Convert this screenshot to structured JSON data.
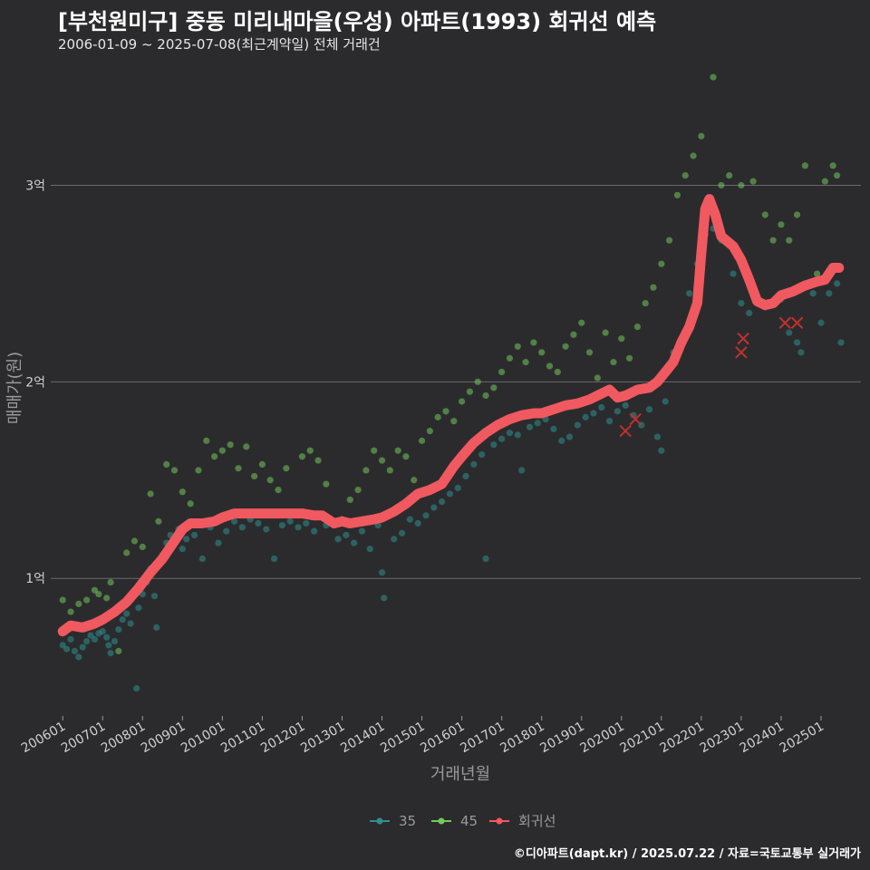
{
  "title": "[부천원미구] 중동 미리내마을(우성) 아파트(1993) 회귀선 예측",
  "subtitle": "2006-01-09 ~ 2025-07-08(최근계약일) 전체 거래건",
  "caption": "©디아파트(dapt.kr) / 2025.07.22 / 자료=국토교통부 실거래가",
  "colors": {
    "background": "#2b2b2d",
    "grid": "#6a6a6a",
    "series_35": "#2f8f8f",
    "series_45": "#72c95c",
    "regression": "#f0595f",
    "marker_x": "#c0312f"
  },
  "chart_data": {
    "type": "scatter",
    "xlabel": "거래년월",
    "ylabel": "매매가(원)",
    "x_ticks": [
      "200601",
      "200701",
      "200801",
      "200901",
      "201001",
      "201101",
      "201201",
      "201301",
      "201401",
      "201501",
      "201601",
      "201701",
      "201801",
      "201901",
      "202001",
      "202101",
      "202201",
      "202301",
      "202401",
      "202501"
    ],
    "y_ticks": [
      {
        "value": 1,
        "label": "1억"
      },
      {
        "value": 2,
        "label": "2억"
      },
      {
        "value": 3,
        "label": "3억"
      }
    ],
    "xlim": [
      2005.7,
      2026.0
    ],
    "ylim": [
      0.3,
      3.62
    ],
    "unit": "억",
    "legend": [
      "35",
      "45",
      "회귀선"
    ],
    "legend_position": "bottom",
    "regression_line": [
      [
        2006.0,
        0.73
      ],
      [
        2006.2,
        0.76
      ],
      [
        2006.5,
        0.75
      ],
      [
        2006.8,
        0.77
      ],
      [
        2007.0,
        0.79
      ],
      [
        2007.3,
        0.83
      ],
      [
        2007.6,
        0.88
      ],
      [
        2007.9,
        0.95
      ],
      [
        2008.2,
        1.03
      ],
      [
        2008.5,
        1.1
      ],
      [
        2008.8,
        1.19
      ],
      [
        2009.0,
        1.25
      ],
      [
        2009.2,
        1.28
      ],
      [
        2009.5,
        1.28
      ],
      [
        2009.8,
        1.29
      ],
      [
        2010.0,
        1.31
      ],
      [
        2010.3,
        1.33
      ],
      [
        2010.6,
        1.33
      ],
      [
        2010.9,
        1.33
      ],
      [
        2011.2,
        1.33
      ],
      [
        2011.5,
        1.33
      ],
      [
        2011.8,
        1.33
      ],
      [
        2012.0,
        1.33
      ],
      [
        2012.3,
        1.32
      ],
      [
        2012.5,
        1.32
      ],
      [
        2012.8,
        1.28
      ],
      [
        2013.0,
        1.29
      ],
      [
        2013.2,
        1.28
      ],
      [
        2013.5,
        1.29
      ],
      [
        2013.8,
        1.3
      ],
      [
        2014.0,
        1.31
      ],
      [
        2014.3,
        1.34
      ],
      [
        2014.6,
        1.38
      ],
      [
        2014.9,
        1.43
      ],
      [
        2015.2,
        1.45
      ],
      [
        2015.5,
        1.48
      ],
      [
        2015.8,
        1.57
      ],
      [
        2016.0,
        1.62
      ],
      [
        2016.3,
        1.69
      ],
      [
        2016.6,
        1.74
      ],
      [
        2016.9,
        1.78
      ],
      [
        2017.2,
        1.81
      ],
      [
        2017.5,
        1.83
      ],
      [
        2017.8,
        1.84
      ],
      [
        2018.0,
        1.84
      ],
      [
        2018.3,
        1.86
      ],
      [
        2018.6,
        1.88
      ],
      [
        2018.9,
        1.89
      ],
      [
        2019.2,
        1.91
      ],
      [
        2019.5,
        1.94
      ],
      [
        2019.7,
        1.96
      ],
      [
        2019.9,
        1.92
      ],
      [
        2020.1,
        1.93
      ],
      [
        2020.4,
        1.96
      ],
      [
        2020.7,
        1.97
      ],
      [
        2020.9,
        2.0
      ],
      [
        2021.1,
        2.05
      ],
      [
        2021.3,
        2.1
      ],
      [
        2021.5,
        2.2
      ],
      [
        2021.7,
        2.28
      ],
      [
        2021.9,
        2.4
      ],
      [
        2022.0,
        2.65
      ],
      [
        2022.1,
        2.88
      ],
      [
        2022.2,
        2.93
      ],
      [
        2022.35,
        2.85
      ],
      [
        2022.5,
        2.74
      ],
      [
        2022.8,
        2.69
      ],
      [
        2023.0,
        2.62
      ],
      [
        2023.2,
        2.52
      ],
      [
        2023.4,
        2.41
      ],
      [
        2023.6,
        2.39
      ],
      [
        2023.8,
        2.4
      ],
      [
        2024.0,
        2.44
      ],
      [
        2024.3,
        2.46
      ],
      [
        2024.6,
        2.49
      ],
      [
        2024.9,
        2.51
      ],
      [
        2025.1,
        2.52
      ],
      [
        2025.3,
        2.58
      ],
      [
        2025.45,
        2.58
      ]
    ],
    "x_markers": [
      [
        2020.1,
        1.75
      ],
      [
        2020.35,
        1.81
      ],
      [
        2023.0,
        2.15
      ],
      [
        2023.05,
        2.22
      ],
      [
        2024.1,
        2.3
      ],
      [
        2024.4,
        2.3
      ]
    ],
    "series": [
      {
        "name": "35",
        "points": [
          [
            2006.0,
            0.66
          ],
          [
            2006.1,
            0.64
          ],
          [
            2006.2,
            0.69
          ],
          [
            2006.3,
            0.63
          ],
          [
            2006.4,
            0.6
          ],
          [
            2006.5,
            0.65
          ],
          [
            2006.6,
            0.68
          ],
          [
            2006.7,
            0.71
          ],
          [
            2006.8,
            0.69
          ],
          [
            2006.9,
            0.72
          ],
          [
            2007.0,
            0.73
          ],
          [
            2007.1,
            0.7
          ],
          [
            2007.15,
            0.66
          ],
          [
            2007.2,
            0.62
          ],
          [
            2007.3,
            0.68
          ],
          [
            2007.4,
            0.74
          ],
          [
            2007.5,
            0.79
          ],
          [
            2007.6,
            0.82
          ],
          [
            2007.7,
            0.77
          ],
          [
            2007.85,
            0.44
          ],
          [
            2007.9,
            0.85
          ],
          [
            2008.0,
            0.92
          ],
          [
            2008.1,
            0.98
          ],
          [
            2008.2,
            1.05
          ],
          [
            2008.3,
            0.91
          ],
          [
            2008.35,
            0.75
          ],
          [
            2008.4,
            1.08
          ],
          [
            2008.5,
            1.12
          ],
          [
            2008.6,
            1.18
          ],
          [
            2008.7,
            1.22
          ],
          [
            2008.9,
            1.25
          ],
          [
            2009.0,
            1.15
          ],
          [
            2009.1,
            1.2
          ],
          [
            2009.3,
            1.22
          ],
          [
            2009.5,
            1.1
          ],
          [
            2009.7,
            1.26
          ],
          [
            2009.9,
            1.18
          ],
          [
            2010.1,
            1.24
          ],
          [
            2010.3,
            1.29
          ],
          [
            2010.5,
            1.26
          ],
          [
            2010.7,
            1.3
          ],
          [
            2010.9,
            1.28
          ],
          [
            2011.1,
            1.25
          ],
          [
            2011.3,
            1.1
          ],
          [
            2011.5,
            1.27
          ],
          [
            2011.7,
            1.29
          ],
          [
            2011.9,
            1.26
          ],
          [
            2012.1,
            1.28
          ],
          [
            2012.3,
            1.24
          ],
          [
            2012.6,
            1.27
          ],
          [
            2012.9,
            1.2
          ],
          [
            2013.1,
            1.22
          ],
          [
            2013.3,
            1.18
          ],
          [
            2013.5,
            1.24
          ],
          [
            2013.7,
            1.15
          ],
          [
            2013.9,
            1.27
          ],
          [
            2014.0,
            1.03
          ],
          [
            2014.05,
            0.9
          ],
          [
            2014.3,
            1.2
          ],
          [
            2014.5,
            1.23
          ],
          [
            2014.7,
            1.3
          ],
          [
            2014.9,
            1.28
          ],
          [
            2015.1,
            1.32
          ],
          [
            2015.3,
            1.36
          ],
          [
            2015.5,
            1.39
          ],
          [
            2015.7,
            1.43
          ],
          [
            2015.9,
            1.46
          ],
          [
            2016.1,
            1.52
          ],
          [
            2016.3,
            1.58
          ],
          [
            2016.5,
            1.63
          ],
          [
            2016.6,
            1.1
          ],
          [
            2016.8,
            1.68
          ],
          [
            2017.0,
            1.71
          ],
          [
            2017.2,
            1.74
          ],
          [
            2017.4,
            1.73
          ],
          [
            2017.5,
            1.55
          ],
          [
            2017.7,
            1.77
          ],
          [
            2017.9,
            1.79
          ],
          [
            2018.1,
            1.81
          ],
          [
            2018.3,
            1.76
          ],
          [
            2018.5,
            1.7
          ],
          [
            2018.7,
            1.72
          ],
          [
            2018.9,
            1.78
          ],
          [
            2019.1,
            1.82
          ],
          [
            2019.3,
            1.84
          ],
          [
            2019.5,
            1.87
          ],
          [
            2019.7,
            1.8
          ],
          [
            2019.9,
            1.85
          ],
          [
            2020.1,
            1.88
          ],
          [
            2020.3,
            1.83
          ],
          [
            2020.5,
            1.78
          ],
          [
            2020.7,
            1.86
          ],
          [
            2020.9,
            1.72
          ],
          [
            2021.0,
            1.65
          ],
          [
            2021.1,
            1.9
          ],
          [
            2021.3,
            2.15
          ],
          [
            2021.5,
            2.22
          ],
          [
            2021.7,
            2.45
          ],
          [
            2021.9,
            2.6
          ],
          [
            2022.1,
            2.75
          ],
          [
            2022.3,
            2.78
          ],
          [
            2022.5,
            2.72
          ],
          [
            2022.8,
            2.55
          ],
          [
            2023.0,
            2.4
          ],
          [
            2023.2,
            2.35
          ],
          [
            2023.4,
            2.43
          ],
          [
            2023.6,
            2.38
          ],
          [
            2023.8,
            2.4
          ],
          [
            2024.0,
            2.42
          ],
          [
            2024.2,
            2.25
          ],
          [
            2024.4,
            2.2
          ],
          [
            2024.5,
            2.15
          ],
          [
            2024.8,
            2.45
          ],
          [
            2025.0,
            2.3
          ],
          [
            2025.2,
            2.45
          ],
          [
            2025.4,
            2.5
          ],
          [
            2025.5,
            2.2
          ]
        ]
      },
      {
        "name": "45",
        "points": [
          [
            2006.0,
            0.89
          ],
          [
            2006.2,
            0.83
          ],
          [
            2006.4,
            0.87
          ],
          [
            2006.6,
            0.89
          ],
          [
            2006.8,
            0.94
          ],
          [
            2006.9,
            0.92
          ],
          [
            2007.1,
            0.9
          ],
          [
            2007.2,
            0.98
          ],
          [
            2007.4,
            0.63
          ],
          [
            2007.6,
            1.13
          ],
          [
            2007.8,
            1.19
          ],
          [
            2008.0,
            1.16
          ],
          [
            2008.2,
            1.43
          ],
          [
            2008.4,
            1.29
          ],
          [
            2008.6,
            1.58
          ],
          [
            2008.8,
            1.55
          ],
          [
            2009.0,
            1.44
          ],
          [
            2009.2,
            1.38
          ],
          [
            2009.4,
            1.55
          ],
          [
            2009.6,
            1.7
          ],
          [
            2009.8,
            1.62
          ],
          [
            2010.0,
            1.65
          ],
          [
            2010.2,
            1.68
          ],
          [
            2010.4,
            1.56
          ],
          [
            2010.6,
            1.67
          ],
          [
            2010.8,
            1.52
          ],
          [
            2011.0,
            1.58
          ],
          [
            2011.2,
            1.5
          ],
          [
            2011.4,
            1.45
          ],
          [
            2011.6,
            1.56
          ],
          [
            2012.0,
            1.62
          ],
          [
            2012.2,
            1.65
          ],
          [
            2012.4,
            1.6
          ],
          [
            2012.6,
            1.48
          ],
          [
            2013.0,
            1.3
          ],
          [
            2013.2,
            1.4
          ],
          [
            2013.4,
            1.45
          ],
          [
            2013.6,
            1.55
          ],
          [
            2013.8,
            1.65
          ],
          [
            2014.0,
            1.6
          ],
          [
            2014.2,
            1.55
          ],
          [
            2014.4,
            1.65
          ],
          [
            2014.6,
            1.62
          ],
          [
            2014.8,
            1.5
          ],
          [
            2015.0,
            1.7
          ],
          [
            2015.2,
            1.75
          ],
          [
            2015.4,
            1.82
          ],
          [
            2015.6,
            1.85
          ],
          [
            2015.8,
            1.8
          ],
          [
            2016.0,
            1.9
          ],
          [
            2016.2,
            1.95
          ],
          [
            2016.4,
            2.0
          ],
          [
            2016.6,
            1.93
          ],
          [
            2016.8,
            1.97
          ],
          [
            2017.0,
            2.05
          ],
          [
            2017.2,
            2.12
          ],
          [
            2017.4,
            2.18
          ],
          [
            2017.6,
            2.1
          ],
          [
            2017.8,
            2.2
          ],
          [
            2018.0,
            2.15
          ],
          [
            2018.2,
            2.08
          ],
          [
            2018.4,
            2.05
          ],
          [
            2018.6,
            2.18
          ],
          [
            2018.8,
            2.24
          ],
          [
            2019.0,
            2.3
          ],
          [
            2019.2,
            2.15
          ],
          [
            2019.4,
            2.02
          ],
          [
            2019.6,
            2.25
          ],
          [
            2019.8,
            2.1
          ],
          [
            2020.0,
            2.22
          ],
          [
            2020.2,
            2.12
          ],
          [
            2020.4,
            2.28
          ],
          [
            2020.6,
            2.4
          ],
          [
            2020.8,
            2.48
          ],
          [
            2021.0,
            2.6
          ],
          [
            2021.2,
            2.72
          ],
          [
            2021.4,
            2.95
          ],
          [
            2021.6,
            3.05
          ],
          [
            2021.8,
            3.15
          ],
          [
            2022.0,
            3.25
          ],
          [
            2022.3,
            3.55
          ],
          [
            2022.5,
            3.0
          ],
          [
            2022.7,
            3.05
          ],
          [
            2023.0,
            3.0
          ],
          [
            2023.3,
            3.02
          ],
          [
            2023.6,
            2.85
          ],
          [
            2023.8,
            2.72
          ],
          [
            2024.0,
            2.8
          ],
          [
            2024.2,
            2.72
          ],
          [
            2024.4,
            2.85
          ],
          [
            2024.6,
            3.1
          ],
          [
            2024.9,
            2.55
          ],
          [
            2025.1,
            3.02
          ],
          [
            2025.3,
            3.1
          ],
          [
            2025.4,
            3.05
          ]
        ]
      }
    ]
  }
}
